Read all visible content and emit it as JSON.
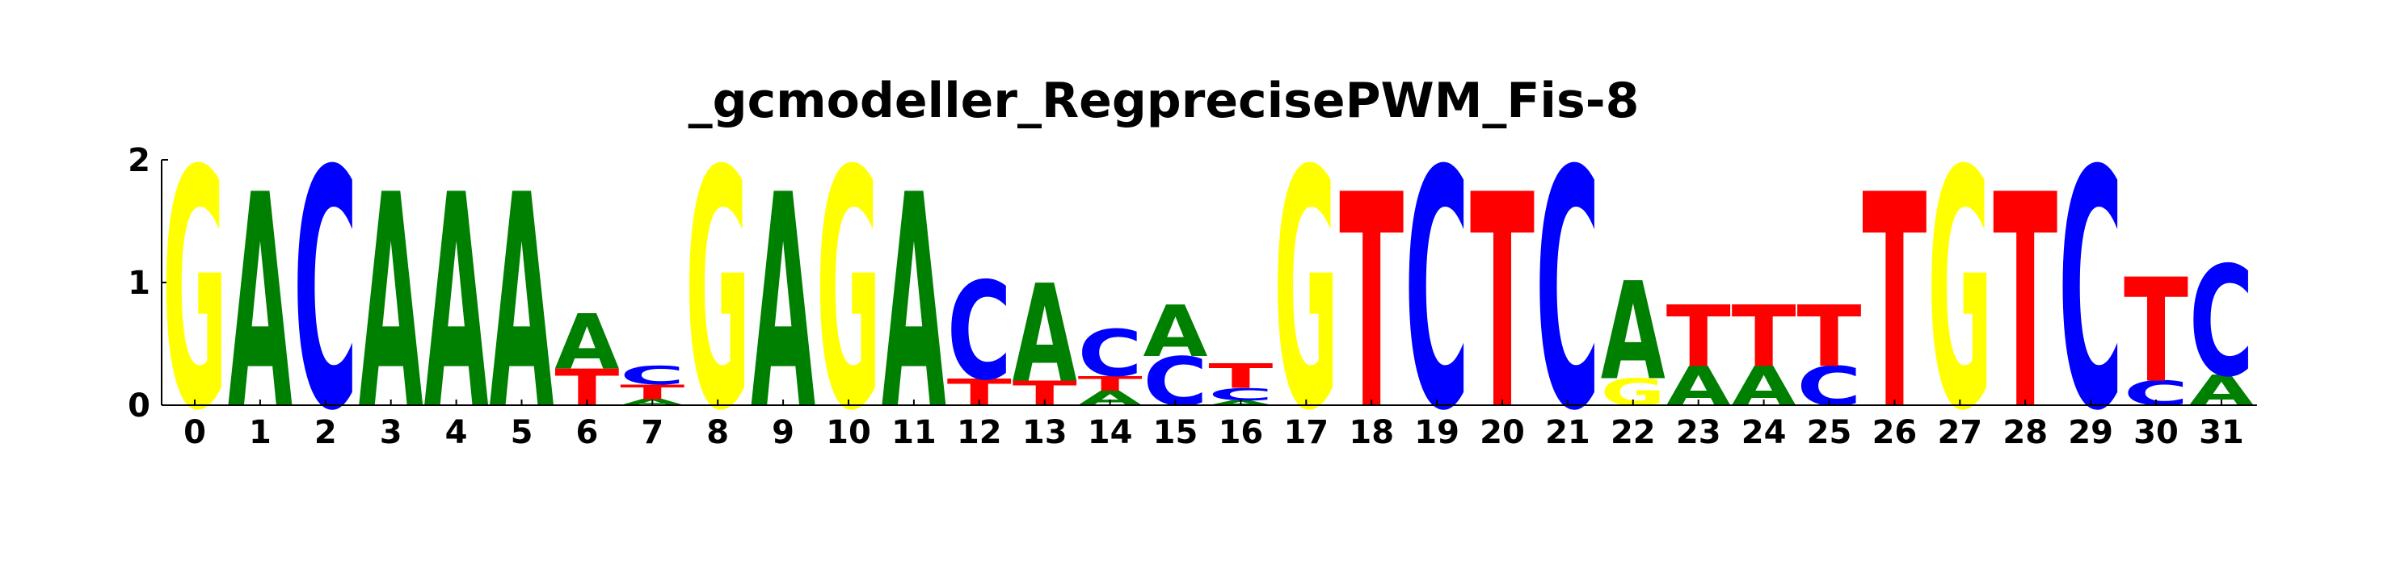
{
  "chart_data": {
    "type": "sequence_logo",
    "title": "_gcmodeller_RegprecisePWM_Fis-8",
    "xlabel": "",
    "ylabel": "",
    "ylim": [
      0,
      2
    ],
    "yticks": [
      0,
      1,
      2
    ],
    "x": [
      0,
      1,
      2,
      3,
      4,
      5,
      6,
      7,
      8,
      9,
      10,
      11,
      12,
      13,
      14,
      15,
      16,
      17,
      18,
      19,
      20,
      21,
      22,
      23,
      24,
      25,
      26,
      27,
      28,
      29,
      30,
      31
    ],
    "colors": {
      "A": "#008000",
      "C": "#0000ff",
      "G": "#ffff00",
      "T": "#ff0000"
    },
    "positions": [
      [
        {
          "base": "G",
          "height": 1.95
        }
      ],
      [
        {
          "base": "A",
          "height": 1.75
        }
      ],
      [
        {
          "base": "C",
          "height": 1.95
        }
      ],
      [
        {
          "base": "A",
          "height": 1.75
        }
      ],
      [
        {
          "base": "A",
          "height": 1.75
        }
      ],
      [
        {
          "base": "A",
          "height": 1.75
        }
      ],
      [
        {
          "base": "T",
          "height": 0.3
        },
        {
          "base": "A",
          "height": 0.45
        }
      ],
      [
        {
          "base": "A",
          "height": 0.05
        },
        {
          "base": "T",
          "height": 0.12
        },
        {
          "base": "C",
          "height": 0.15
        }
      ],
      [
        {
          "base": "G",
          "height": 1.95
        }
      ],
      [
        {
          "base": "A",
          "height": 1.75
        }
      ],
      [
        {
          "base": "G",
          "height": 1.95
        }
      ],
      [
        {
          "base": "A",
          "height": 1.75
        }
      ],
      [
        {
          "base": "T",
          "height": 0.22
        },
        {
          "base": "C",
          "height": 0.8
        }
      ],
      [
        {
          "base": "T",
          "height": 0.2
        },
        {
          "base": "A",
          "height": 0.8
        }
      ],
      [
        {
          "base": "A",
          "height": 0.12
        },
        {
          "base": "T",
          "height": 0.12
        },
        {
          "base": "C",
          "height": 0.38
        }
      ],
      [
        {
          "base": "C",
          "height": 0.4
        },
        {
          "base": "A",
          "height": 0.42
        }
      ],
      [
        {
          "base": "A",
          "height": 0.04
        },
        {
          "base": "C",
          "height": 0.1
        },
        {
          "base": "T",
          "height": 0.2
        }
      ],
      [
        {
          "base": "G",
          "height": 1.95
        }
      ],
      [
        {
          "base": "T",
          "height": 1.75
        }
      ],
      [
        {
          "base": "C",
          "height": 1.95
        }
      ],
      [
        {
          "base": "T",
          "height": 1.75
        }
      ],
      [
        {
          "base": "C",
          "height": 1.95
        }
      ],
      [
        {
          "base": "G",
          "height": 0.22
        },
        {
          "base": "A",
          "height": 0.8
        }
      ],
      [
        {
          "base": "A",
          "height": 0.32
        },
        {
          "base": "T",
          "height": 0.5
        }
      ],
      [
        {
          "base": "A",
          "height": 0.32
        },
        {
          "base": "T",
          "height": 0.5
        }
      ],
      [
        {
          "base": "C",
          "height": 0.32
        },
        {
          "base": "T",
          "height": 0.5
        }
      ],
      [
        {
          "base": "T",
          "height": 1.75
        }
      ],
      [
        {
          "base": "G",
          "height": 1.95
        }
      ],
      [
        {
          "base": "T",
          "height": 1.75
        }
      ],
      [
        {
          "base": "C",
          "height": 1.95
        }
      ],
      [
        {
          "base": "C",
          "height": 0.2
        },
        {
          "base": "T",
          "height": 0.85
        }
      ],
      [
        {
          "base": "A",
          "height": 0.25
        },
        {
          "base": "C",
          "height": 0.9
        }
      ]
    ]
  }
}
